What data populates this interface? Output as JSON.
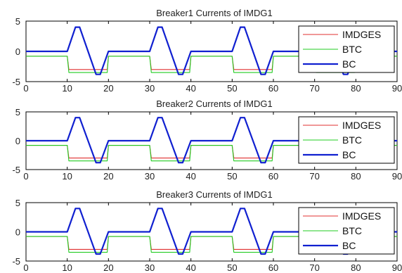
{
  "chart_data": [
    {
      "type": "line",
      "title": "Breaker1 Currents of IMDG1",
      "xlim": [
        0,
        90
      ],
      "ylim": [
        -5,
        5
      ],
      "xticks": [
        "0",
        "10",
        "20",
        "30",
        "40",
        "50",
        "60",
        "70",
        "80",
        "90"
      ],
      "yticks": [
        "5",
        "0",
        "-5"
      ],
      "legend_position": "top-right",
      "series": [
        {
          "name": "IMDGES",
          "color": "#e03030",
          "x": [
            0,
            10,
            10.4,
            19.7,
            20,
            30,
            30.4,
            39.7,
            40,
            50,
            50.4,
            59.7,
            60,
            70,
            70.4,
            79.7,
            80,
            90
          ],
          "y": [
            -0.8,
            -0.8,
            -3.0,
            -3.0,
            -0.8,
            -0.8,
            -3.0,
            -3.0,
            -0.8,
            -0.8,
            -3.0,
            -3.0,
            -0.8,
            -0.8,
            -3.0,
            -3.0,
            -0.8,
            -0.8
          ]
        },
        {
          "name": "BTC",
          "color": "#22cc22",
          "x": [
            0,
            10,
            10.4,
            19.7,
            20,
            30,
            30.4,
            39.7,
            40,
            50,
            50.4,
            59.7,
            60,
            70,
            70.4,
            79.7,
            80,
            90
          ],
          "y": [
            -0.8,
            -0.8,
            -3.5,
            -3.5,
            -0.8,
            -0.8,
            -3.5,
            -3.5,
            -0.8,
            -0.8,
            -3.5,
            -3.5,
            -0.8,
            -0.8,
            -3.5,
            -3.5,
            -0.8,
            -0.8
          ]
        },
        {
          "name": "BC",
          "color": "#1020d0",
          "x": [
            0,
            10,
            12,
            13,
            17,
            18,
            20,
            30,
            32,
            33,
            37,
            38,
            40,
            50,
            52,
            53,
            57,
            58,
            60,
            70,
            72,
            73,
            77,
            78,
            80,
            90
          ],
          "y": [
            0,
            0,
            4,
            4,
            -3.8,
            -3.8,
            0,
            0,
            4,
            4,
            -3.8,
            -3.8,
            0,
            0,
            4,
            4,
            -3.8,
            -3.8,
            0,
            0,
            4,
            4,
            -3.8,
            -3.8,
            0,
            0
          ]
        }
      ]
    },
    {
      "type": "line",
      "title": "Breaker2 Currents of IMDG1",
      "xlim": [
        0,
        90
      ],
      "ylim": [
        -5,
        5
      ],
      "xticks": [
        "0",
        "10",
        "20",
        "30",
        "40",
        "50",
        "60",
        "70",
        "80",
        "90"
      ],
      "yticks": [
        "5",
        "0",
        "-5"
      ],
      "legend_position": "top-right",
      "series": [
        {
          "name": "IMDGES",
          "color": "#e03030",
          "x": [
            0,
            10,
            10.4,
            19.7,
            20,
            30,
            30.4,
            39.7,
            40,
            50,
            50.4,
            59.7,
            60,
            70,
            70.4,
            79.7,
            80,
            90
          ],
          "y": [
            -0.8,
            -0.8,
            -3.0,
            -3.0,
            -0.8,
            -0.8,
            -3.0,
            -3.0,
            -0.8,
            -0.8,
            -3.0,
            -3.0,
            -0.8,
            -0.8,
            -3.0,
            -3.0,
            -0.8,
            -0.8
          ]
        },
        {
          "name": "BTC",
          "color": "#22cc22",
          "x": [
            0,
            10,
            10.4,
            19.7,
            20,
            30,
            30.4,
            39.7,
            40,
            50,
            50.4,
            59.7,
            60,
            70,
            70.4,
            79.7,
            80,
            90
          ],
          "y": [
            -0.8,
            -0.8,
            -3.5,
            -3.5,
            -0.8,
            -0.8,
            -3.5,
            -3.5,
            -0.8,
            -0.8,
            -3.5,
            -3.5,
            -0.8,
            -0.8,
            -3.5,
            -3.5,
            -0.8,
            -0.8
          ]
        },
        {
          "name": "BC",
          "color": "#1020d0",
          "x": [
            0,
            10,
            12,
            13,
            17,
            18,
            20,
            30,
            32,
            33,
            37,
            38,
            40,
            50,
            52,
            53,
            57,
            58,
            60,
            70,
            72,
            73,
            77,
            78,
            80,
            90
          ],
          "y": [
            0,
            0,
            4,
            4,
            -3.8,
            -3.8,
            0,
            0,
            4,
            4,
            -3.8,
            -3.8,
            0,
            0,
            4,
            4,
            -3.8,
            -3.8,
            0,
            0,
            4,
            4,
            -3.8,
            -3.8,
            0,
            0
          ]
        }
      ]
    },
    {
      "type": "line",
      "title": "Breaker3 Currents of IMDG1",
      "xlim": [
        0,
        90
      ],
      "ylim": [
        -5,
        5
      ],
      "xticks": [
        "0",
        "10",
        "20",
        "30",
        "40",
        "50",
        "60",
        "70",
        "80",
        "90"
      ],
      "yticks": [
        "5",
        "0",
        "-5"
      ],
      "legend_position": "top-right",
      "series": [
        {
          "name": "IMDGES",
          "color": "#e03030",
          "x": [
            0,
            10,
            10.4,
            19.7,
            20,
            30,
            30.4,
            39.7,
            40,
            50,
            50.4,
            59.7,
            60,
            70,
            70.4,
            79.7,
            80,
            90
          ],
          "y": [
            -0.8,
            -0.8,
            -3.0,
            -3.0,
            -0.8,
            -0.8,
            -3.0,
            -3.0,
            -0.8,
            -0.8,
            -3.0,
            -3.0,
            -0.8,
            -0.8,
            -3.0,
            -3.0,
            -0.8,
            -0.8
          ]
        },
        {
          "name": "BTC",
          "color": "#22cc22",
          "x": [
            0,
            10,
            10.4,
            19.7,
            20,
            30,
            30.4,
            39.7,
            40,
            50,
            50.4,
            59.7,
            60,
            70,
            70.4,
            79.7,
            80,
            90
          ],
          "y": [
            -0.8,
            -0.8,
            -3.5,
            -3.5,
            -0.8,
            -0.8,
            -3.5,
            -3.5,
            -0.8,
            -0.8,
            -3.5,
            -3.5,
            -0.8,
            -0.8,
            -3.5,
            -3.5,
            -0.8,
            -0.8
          ]
        },
        {
          "name": "BC",
          "color": "#1020d0",
          "x": [
            0,
            10,
            12,
            13,
            17,
            18,
            20,
            30,
            32,
            33,
            37,
            38,
            40,
            50,
            52,
            53,
            57,
            58,
            60,
            70,
            72,
            73,
            77,
            78,
            80,
            90
          ],
          "y": [
            0,
            0,
            4,
            4,
            -3.8,
            -3.8,
            0,
            0,
            4,
            4,
            -3.8,
            -3.8,
            0,
            0,
            4,
            4,
            -3.8,
            -3.8,
            0,
            0,
            4,
            4,
            -3.8,
            -3.8,
            0,
            0
          ]
        }
      ]
    }
  ]
}
